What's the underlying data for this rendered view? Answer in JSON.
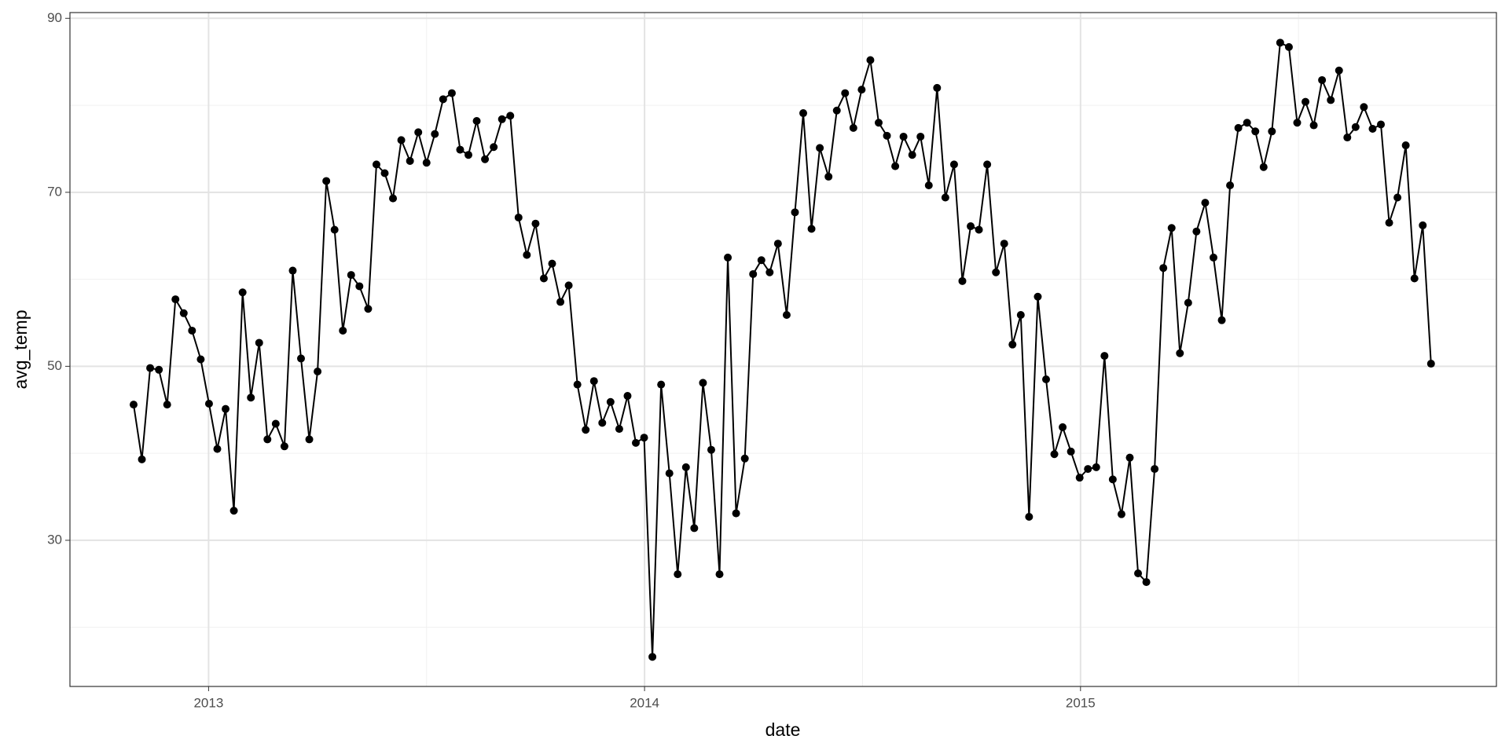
{
  "chart_data": {
    "type": "line",
    "x_label": "date",
    "y_label": "avg_temp",
    "xlim": [
      2012.682,
      2015.954
    ],
    "ylim": [
      13.2,
      90.66
    ],
    "xticks": [
      2013,
      2014,
      2015
    ],
    "yticks": [
      30,
      50,
      70,
      90
    ],
    "xminor": [
      2013.5,
      2014.5,
      2015.5
    ],
    "yminor": [
      20,
      40,
      60,
      80
    ],
    "grid": true,
    "markers": true,
    "series": [
      {
        "color": "#000000",
        "x": [
          2012.828,
          2012.847,
          2012.866,
          2012.886,
          2012.905,
          2012.924,
          2012.943,
          2012.962,
          2012.982,
          2013.001,
          2013.02,
          2013.039,
          2013.058,
          2013.078,
          2013.097,
          2013.116,
          2013.135,
          2013.154,
          2013.174,
          2013.193,
          2013.212,
          2013.231,
          2013.25,
          2013.27,
          2013.289,
          2013.308,
          2013.327,
          2013.346,
          2013.366,
          2013.385,
          2013.404,
          2013.423,
          2013.442,
          2013.462,
          2013.481,
          2013.5,
          2013.519,
          2013.538,
          2013.558,
          2013.577,
          2013.596,
          2013.615,
          2013.634,
          2013.654,
          2013.673,
          2013.692,
          2013.711,
          2013.73,
          2013.75,
          2013.769,
          2013.788,
          2013.807,
          2013.826,
          2013.846,
          2013.865,
          2013.884,
          2013.903,
          2013.922,
          2013.942,
          2013.961,
          2013.98,
          2013.999,
          2014.018,
          2014.038,
          2014.057,
          2014.076,
          2014.095,
          2014.114,
          2014.134,
          2014.153,
          2014.172,
          2014.191,
          2014.21,
          2014.23,
          2014.249,
          2014.268,
          2014.287,
          2014.306,
          2014.326,
          2014.345,
          2014.364,
          2014.383,
          2014.402,
          2014.422,
          2014.441,
          2014.46,
          2014.479,
          2014.498,
          2014.518,
          2014.537,
          2014.556,
          2014.575,
          2014.594,
          2014.614,
          2014.633,
          2014.652,
          2014.671,
          2014.69,
          2014.71,
          2014.729,
          2014.748,
          2014.767,
          2014.786,
          2014.806,
          2014.825,
          2014.844,
          2014.863,
          2014.882,
          2014.902,
          2014.921,
          2014.94,
          2014.959,
          2014.978,
          2014.998,
          2015.017,
          2015.036,
          2015.055,
          2015.074,
          2015.094,
          2015.113,
          2015.132,
          2015.151,
          2015.17,
          2015.19,
          2015.209,
          2015.228,
          2015.247,
          2015.266,
          2015.286,
          2015.305,
          2015.324,
          2015.343,
          2015.362,
          2015.382,
          2015.401,
          2015.42,
          2015.439,
          2015.458,
          2015.478,
          2015.497,
          2015.516,
          2015.535,
          2015.554,
          2015.574,
          2015.593,
          2015.612,
          2015.631,
          2015.65,
          2015.67,
          2015.689,
          2015.708,
          2015.727,
          2015.746,
          2015.766,
          2015.785,
          2015.804
        ],
        "values": [
          45.6,
          39.3,
          49.8,
          49.6,
          45.6,
          57.7,
          56.1,
          54.1,
          50.8,
          45.7,
          40.5,
          45.1,
          33.4,
          58.5,
          46.4,
          52.7,
          41.6,
          43.4,
          40.8,
          61.0,
          50.9,
          41.6,
          49.4,
          71.3,
          65.7,
          54.1,
          60.5,
          59.2,
          56.6,
          73.2,
          72.2,
          69.3,
          76.0,
          73.6,
          76.9,
          73.4,
          76.7,
          80.7,
          81.4,
          74.9,
          74.3,
          78.2,
          73.8,
          75.2,
          78.4,
          78.8,
          67.1,
          62.8,
          66.4,
          60.1,
          61.8,
          57.4,
          59.3,
          47.9,
          42.7,
          48.3,
          43.5,
          45.9,
          42.8,
          46.6,
          41.2,
          41.8,
          16.6,
          47.9,
          37.7,
          26.1,
          38.4,
          31.4,
          48.1,
          40.4,
          26.1,
          62.5,
          33.1,
          39.4,
          60.6,
          62.2,
          60.8,
          64.1,
          55.9,
          67.7,
          79.1,
          65.8,
          75.1,
          71.8,
          79.4,
          81.4,
          77.4,
          81.8,
          85.2,
          78.0,
          76.5,
          73.0,
          76.4,
          74.3,
          76.4,
          70.8,
          82.0,
          69.4,
          73.2,
          59.8,
          66.1,
          65.7,
          73.2,
          60.8,
          64.1,
          52.5,
          55.9,
          32.7,
          58.0,
          48.5,
          39.9,
          43.0,
          40.2,
          37.2,
          38.2,
          38.4,
          51.2,
          37.0,
          33.0,
          39.5,
          26.2,
          25.2,
          38.2,
          61.3,
          65.9,
          51.5,
          57.3,
          65.5,
          68.8,
          62.5,
          55.3,
          70.8,
          77.4,
          78.0,
          77.0,
          72.9,
          77.0,
          87.2,
          86.7,
          78.0,
          80.4,
          77.7,
          82.9,
          80.6,
          84.0,
          76.3,
          77.5,
          79.8,
          77.3,
          77.8,
          66.5,
          69.4,
          75.4,
          60.1,
          66.2,
          50.3
        ]
      }
    ]
  }
}
